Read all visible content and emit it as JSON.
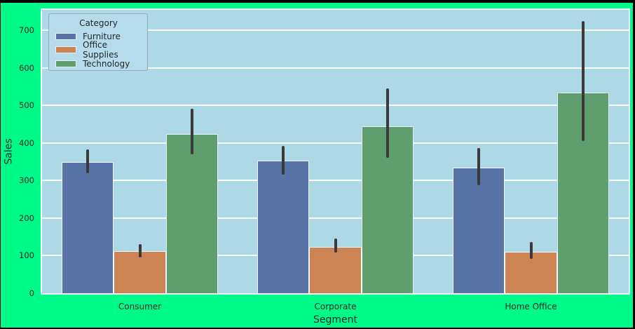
{
  "figure": {
    "background_color": "#00fa8a",
    "frame_color": "#000000",
    "plot_background_color": "#add8e6",
    "gridline_color": "#ffffff",
    "text_color": "#262626",
    "errorbar_color": "#3a3a3a"
  },
  "chart_data": {
    "type": "bar",
    "title": "",
    "xlabel": "Segment",
    "ylabel": "Sales",
    "categories": [
      "Consumer",
      "Corporate",
      "Home Office"
    ],
    "series": [
      {
        "name": "Furniture",
        "color": "#5874a6",
        "values": [
          350,
          353,
          335
        ],
        "ci_low": [
          320,
          315,
          287
        ],
        "ci_high": [
          383,
          392,
          387
        ]
      },
      {
        "name": "Office Supplies",
        "color": "#cd8455",
        "values": [
          113,
          123,
          111
        ],
        "ci_low": [
          96,
          108,
          92
        ],
        "ci_high": [
          131,
          145,
          137
        ]
      },
      {
        "name": "Technology",
        "color": "#5f9e6e",
        "values": [
          425,
          445,
          535
        ],
        "ci_low": [
          370,
          361,
          405
        ],
        "ci_high": [
          492,
          546,
          726
        ]
      }
    ],
    "yticks": [
      0,
      100,
      200,
      300,
      400,
      500,
      600,
      700
    ],
    "ylim": [
      0,
      755
    ],
    "grid": "horizontal",
    "bar_group_width": 0.8,
    "errorbar": "confidence-interval",
    "legend": {
      "title": "Category",
      "position": "upper-left"
    }
  }
}
